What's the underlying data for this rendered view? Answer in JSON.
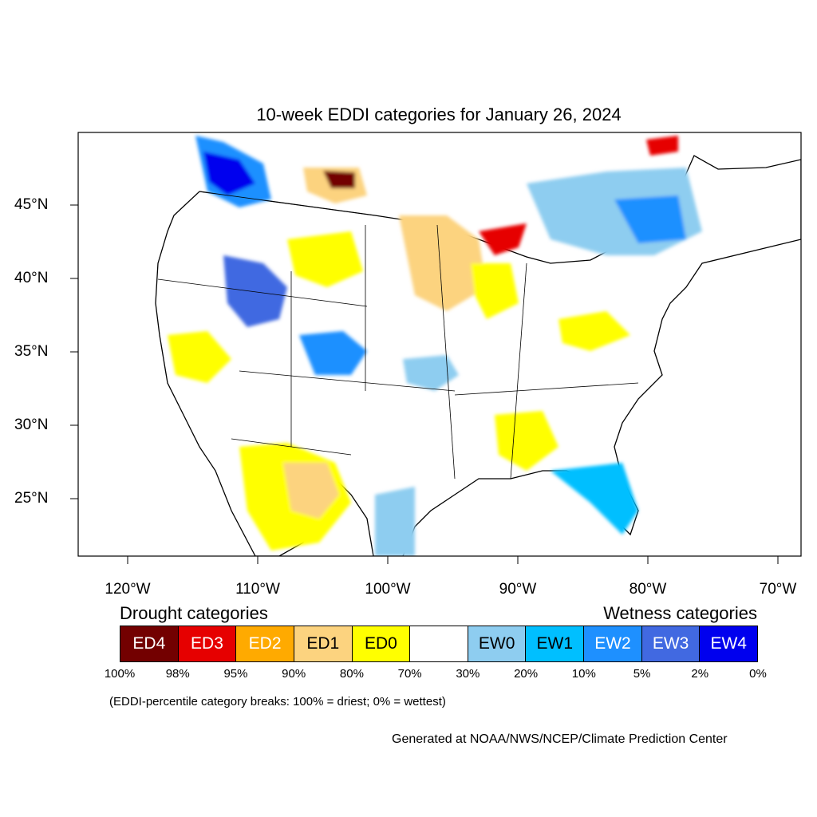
{
  "title": "10-week EDDI categories for January 26, 2024",
  "latitude_labels": [
    "45°N",
    "40°N",
    "35°N",
    "30°N",
    "25°N"
  ],
  "longitude_labels": [
    "120°W",
    "110°W",
    "100°W",
    "90°W",
    "80°W",
    "70°W"
  ],
  "legend": {
    "drought_heading": "Drought categories",
    "wetness_heading": "Wetness categories",
    "categories": [
      {
        "label": "ED4",
        "color": "#730000",
        "text_color": "#ffffff"
      },
      {
        "label": "ED3",
        "color": "#e60000",
        "text_color": "#ffffff"
      },
      {
        "label": "ED2",
        "color": "#ffaa00",
        "text_color": "#ffffff"
      },
      {
        "label": "ED1",
        "color": "#fcd37f",
        "text_color": "#000000"
      },
      {
        "label": "ED0",
        "color": "#ffff00",
        "text_color": "#000000"
      },
      {
        "label": "",
        "color": "#ffffff",
        "text_color": "#000000"
      },
      {
        "label": "EW0",
        "color": "#8ecdf0",
        "text_color": "#000000"
      },
      {
        "label": "EW1",
        "color": "#00bfff",
        "text_color": "#000000"
      },
      {
        "label": "EW2",
        "color": "#1e90ff",
        "text_color": "#ffffff"
      },
      {
        "label": "EW3",
        "color": "#4169e1",
        "text_color": "#ffffff"
      },
      {
        "label": "EW4",
        "color": "#0000ee",
        "text_color": "#ffffff"
      }
    ],
    "percentile_breaks": [
      "100%",
      "98%",
      "95%",
      "90%",
      "80%",
      "70%",
      "30%",
      "20%",
      "10%",
      "5%",
      "2%",
      "0%"
    ]
  },
  "note": "(EDDI-percentile category breaks: 100% = driest; 0% = wettest)",
  "credit": "Generated at NOAA/NWS/NCEP/Climate Prediction Center"
}
